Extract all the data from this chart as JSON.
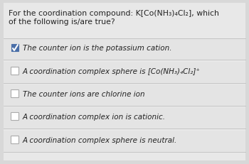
{
  "title_line1": "For the coordination compound: K[Co(NH₃)₄Cl₂], which",
  "title_line2": "of the following is/are true?",
  "options": [
    {
      "text": "The counter ion is the potassium cation.",
      "checked": true
    },
    {
      "text": "A coordination complex sphere is [Co(NH₃)₄Cl₂]⁺",
      "checked": false
    },
    {
      "text": "The counter ions are chlorine ion",
      "checked": false
    },
    {
      "text": "A coordination complex ion is cationic.",
      "checked": false
    },
    {
      "text": "A coordination complex sphere is neutral.",
      "checked": false
    }
  ],
  "bg_color": "#d8d8d8",
  "panel_color": "#e8e8e8",
  "checkbox_color_checked": "#4a6fa8",
  "checkbox_color_unchecked": "#ffffff",
  "checkbox_border_checked": "#4a6fa8",
  "checkbox_border_unchecked": "#aaaaaa",
  "text_color": "#222222",
  "divider_color": "#c0c0c0",
  "title_font_size": 7.8,
  "option_font_size": 7.5
}
